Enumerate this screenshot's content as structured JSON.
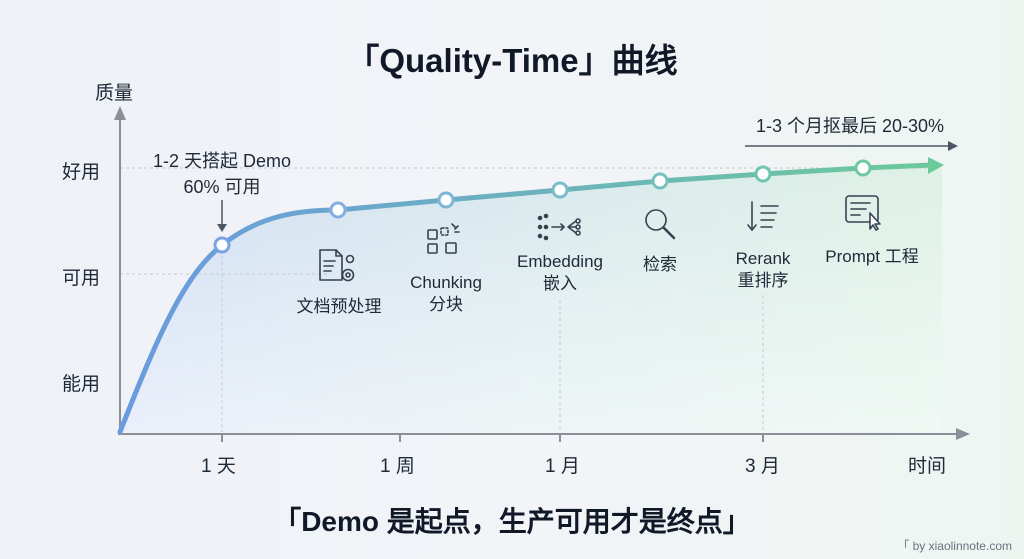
{
  "title": "「Quality-Time」曲线",
  "footer": "「Demo 是起点，生产可用才是终点」",
  "watermark": "「 by xiaolinnote.com",
  "y_axis": {
    "title": "质量",
    "levels": [
      "好用",
      "可用",
      "能用"
    ]
  },
  "x_axis": {
    "title": "时间",
    "ticks": [
      "1 天",
      "1 周",
      "1 月",
      "3 月"
    ]
  },
  "annotations": {
    "demo_line1": "1-2 天搭起 Demo",
    "demo_line2": "60% 可用",
    "late_label": "1-3 个月抠最后 20-30%"
  },
  "steps": [
    {
      "label": "文档预处理",
      "label2": "",
      "icon": "document-settings-icon"
    },
    {
      "label": "Chunking",
      "label2": "分块",
      "icon": "chunk-blocks-icon"
    },
    {
      "label": "Embedding",
      "label2": "嵌入",
      "icon": "embedding-flow-icon"
    },
    {
      "label": "检索",
      "label2": "",
      "icon": "magnifier-icon"
    },
    {
      "label": "Rerank",
      "label2": "重排序",
      "icon": "sort-list-icon"
    },
    {
      "label": "Prompt 工程",
      "label2": "",
      "icon": "prompt-form-icon"
    }
  ],
  "colors": {
    "curve_start": "#6a9ae0",
    "curve_end": "#6cc99a",
    "axis": "#8a8f98",
    "icon": "#374151"
  }
}
